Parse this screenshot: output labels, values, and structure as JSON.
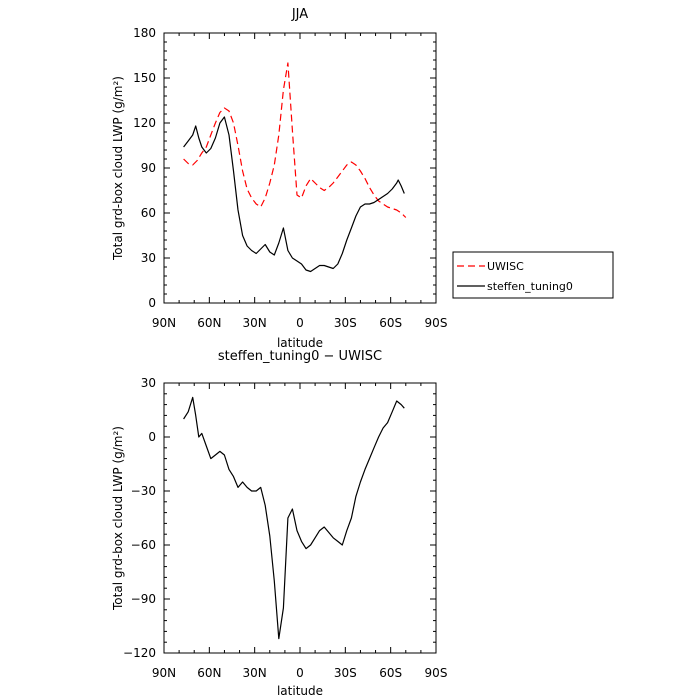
{
  "chart_data": [
    {
      "type": "line",
      "title": "JJA",
      "xlabel": "latitude",
      "ylabel": "Total grd-box cloud LWP (g/m²)",
      "xlim": [
        90,
        -90
      ],
      "ylim": [
        0,
        180
      ],
      "xticks": [
        90,
        60,
        30,
        0,
        -30,
        -60,
        -90
      ],
      "xtick_labels": [
        "90N",
        "60N",
        "30N",
        "0",
        "30S",
        "60S",
        "90S"
      ],
      "yticks": [
        0,
        30,
        60,
        90,
        120,
        150,
        180
      ],
      "ytick_labels": [
        "0",
        "30",
        "60",
        "90",
        "120",
        "150",
        "180"
      ],
      "legend": {
        "placement": "right",
        "entries": [
          {
            "label": "UWISC",
            "color": "#ff0000",
            "style": "dashed"
          },
          {
            "label": "steffen_tuning0",
            "color": "#000000",
            "style": "solid"
          }
        ]
      },
      "series": [
        {
          "name": "UWISC",
          "color": "#ff0000",
          "style": "dashed",
          "x": [
            77,
            74,
            71,
            68,
            65,
            62,
            59,
            56,
            53,
            50,
            47,
            44,
            41,
            38,
            35,
            32,
            29,
            26,
            23,
            20,
            17,
            14,
            11,
            8,
            5,
            2,
            -1,
            -4,
            -7,
            -10,
            -13,
            -16,
            -19,
            -22,
            -25,
            -28,
            -31,
            -34,
            -37,
            -40,
            -43,
            -46,
            -49,
            -52,
            -55,
            -58,
            -61,
            -64,
            -67,
            -70
          ],
          "values": [
            96,
            93,
            92,
            95,
            100,
            104,
            112,
            120,
            127,
            130,
            128,
            120,
            105,
            88,
            76,
            70,
            66,
            64,
            70,
            80,
            92,
            112,
            142,
            160,
            115,
            72,
            70,
            78,
            83,
            80,
            77,
            75,
            77,
            80,
            84,
            88,
            92,
            94,
            92,
            88,
            83,
            77,
            72,
            68,
            66,
            64,
            63,
            62,
            60,
            57
          ]
        },
        {
          "name": "steffen_tuning0",
          "color": "#000000",
          "style": "solid",
          "x": [
            77,
            74,
            71,
            69,
            67,
            65,
            62,
            59,
            56,
            53,
            50,
            47,
            44,
            41,
            38,
            35,
            32,
            29,
            26,
            23,
            20,
            17,
            14,
            11,
            8,
            5,
            2,
            -1,
            -4,
            -7,
            -10,
            -13,
            -16,
            -19,
            -22,
            -25,
            -28,
            -31,
            -34,
            -37,
            -40,
            -43,
            -46,
            -49,
            -52,
            -55,
            -58,
            -61,
            -64,
            -65,
            -67,
            -69
          ],
          "values": [
            104,
            108,
            112,
            118,
            110,
            104,
            100,
            103,
            110,
            120,
            124,
            112,
            88,
            62,
            45,
            38,
            35,
            33,
            36,
            39,
            34,
            32,
            40,
            50,
            35,
            30,
            28,
            26,
            22,
            21,
            23,
            25,
            25,
            24,
            23,
            26,
            33,
            42,
            50,
            58,
            64,
            66,
            66,
            67,
            69,
            71,
            73,
            76,
            80,
            82,
            78,
            73
          ]
        }
      ]
    },
    {
      "type": "line",
      "title": "steffen_tuning0 − UWISC",
      "xlabel": "latitude",
      "ylabel": "Total grd-box cloud LWP (g/m²)",
      "xlim": [
        90,
        -90
      ],
      "ylim": [
        -120,
        30
      ],
      "xticks": [
        90,
        60,
        30,
        0,
        -30,
        -60,
        -90
      ],
      "xtick_labels": [
        "90N",
        "60N",
        "30N",
        "0",
        "30S",
        "60S",
        "90S"
      ],
      "yticks": [
        -120,
        -90,
        -60,
        -30,
        0,
        30
      ],
      "ytick_labels": [
        "−120",
        "−90",
        "−60",
        "−30",
        "0",
        "30"
      ],
      "series": [
        {
          "color": "#000000",
          "style": "solid",
          "x": [
            77,
            74,
            71,
            69,
            67,
            65,
            62,
            59,
            56,
            53,
            50,
            47,
            44,
            41,
            38,
            35,
            32,
            29,
            26,
            23,
            20,
            17,
            14,
            11,
            8,
            5,
            2,
            -1,
            -4,
            -7,
            -10,
            -13,
            -16,
            -19,
            -22,
            -25,
            -28,
            -31,
            -34,
            -37,
            -40,
            -43,
            -46,
            -49,
            -52,
            -55,
            -58,
            -61,
            -64,
            -67,
            -69
          ],
          "values": [
            10,
            14,
            22,
            12,
            0,
            2,
            -5,
            -12,
            -10,
            -8,
            -10,
            -18,
            -22,
            -28,
            -25,
            -28,
            -30,
            -30,
            -28,
            -38,
            -55,
            -80,
            -112,
            -95,
            -45,
            -40,
            -52,
            -58,
            -62,
            -60,
            -56,
            -52,
            -50,
            -53,
            -56,
            -58,
            -60,
            -52,
            -45,
            -33,
            -25,
            -18,
            -12,
            -6,
            0,
            5,
            8,
            14,
            20,
            18,
            16
          ]
        }
      ]
    }
  ]
}
